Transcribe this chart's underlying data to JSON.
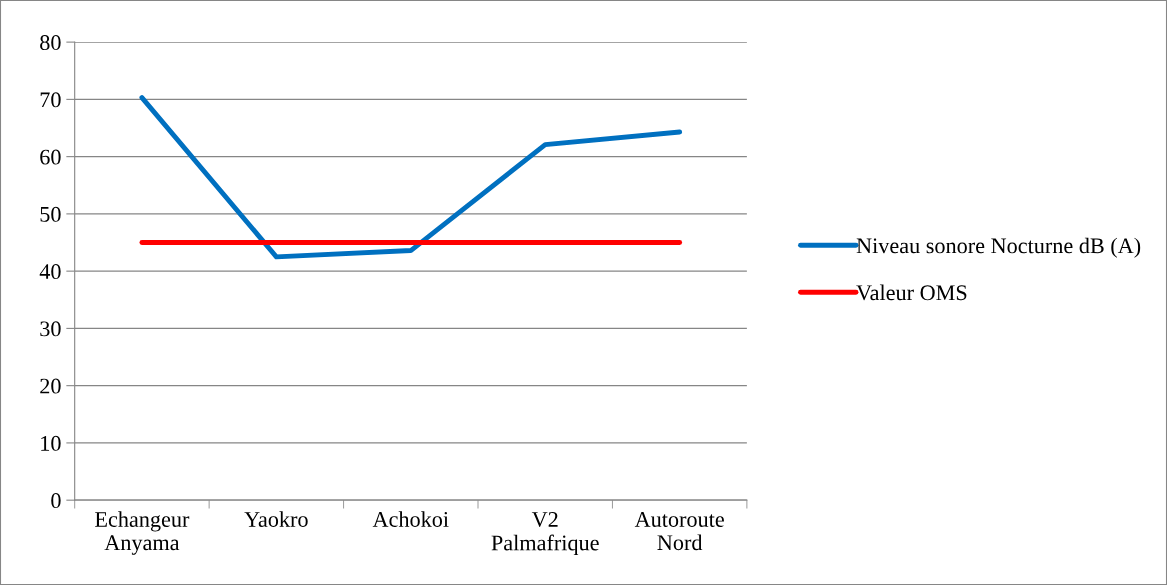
{
  "chart_data": {
    "type": "line",
    "categories": [
      "Echangeur\nAnyama",
      "Yaokro",
      "Achokoi",
      "V2\nPalmafrique",
      "Autoroute\nNord"
    ],
    "series": [
      {
        "name": "Niveau sonore Nocturne dB (A)",
        "color": "#0070c0",
        "values": [
          70.3,
          42.5,
          43.6,
          62.1,
          64.3
        ]
      },
      {
        "name": "Valeur OMS",
        "color": "#ff0000",
        "values": [
          45,
          45,
          45,
          45,
          45
        ]
      }
    ],
    "ylim": [
      0,
      80
    ],
    "yticks": [
      0,
      10,
      20,
      30,
      40,
      50,
      60,
      70,
      80
    ],
    "grid": "y",
    "legend": "right",
    "marker": "none",
    "line_style": "solid"
  }
}
